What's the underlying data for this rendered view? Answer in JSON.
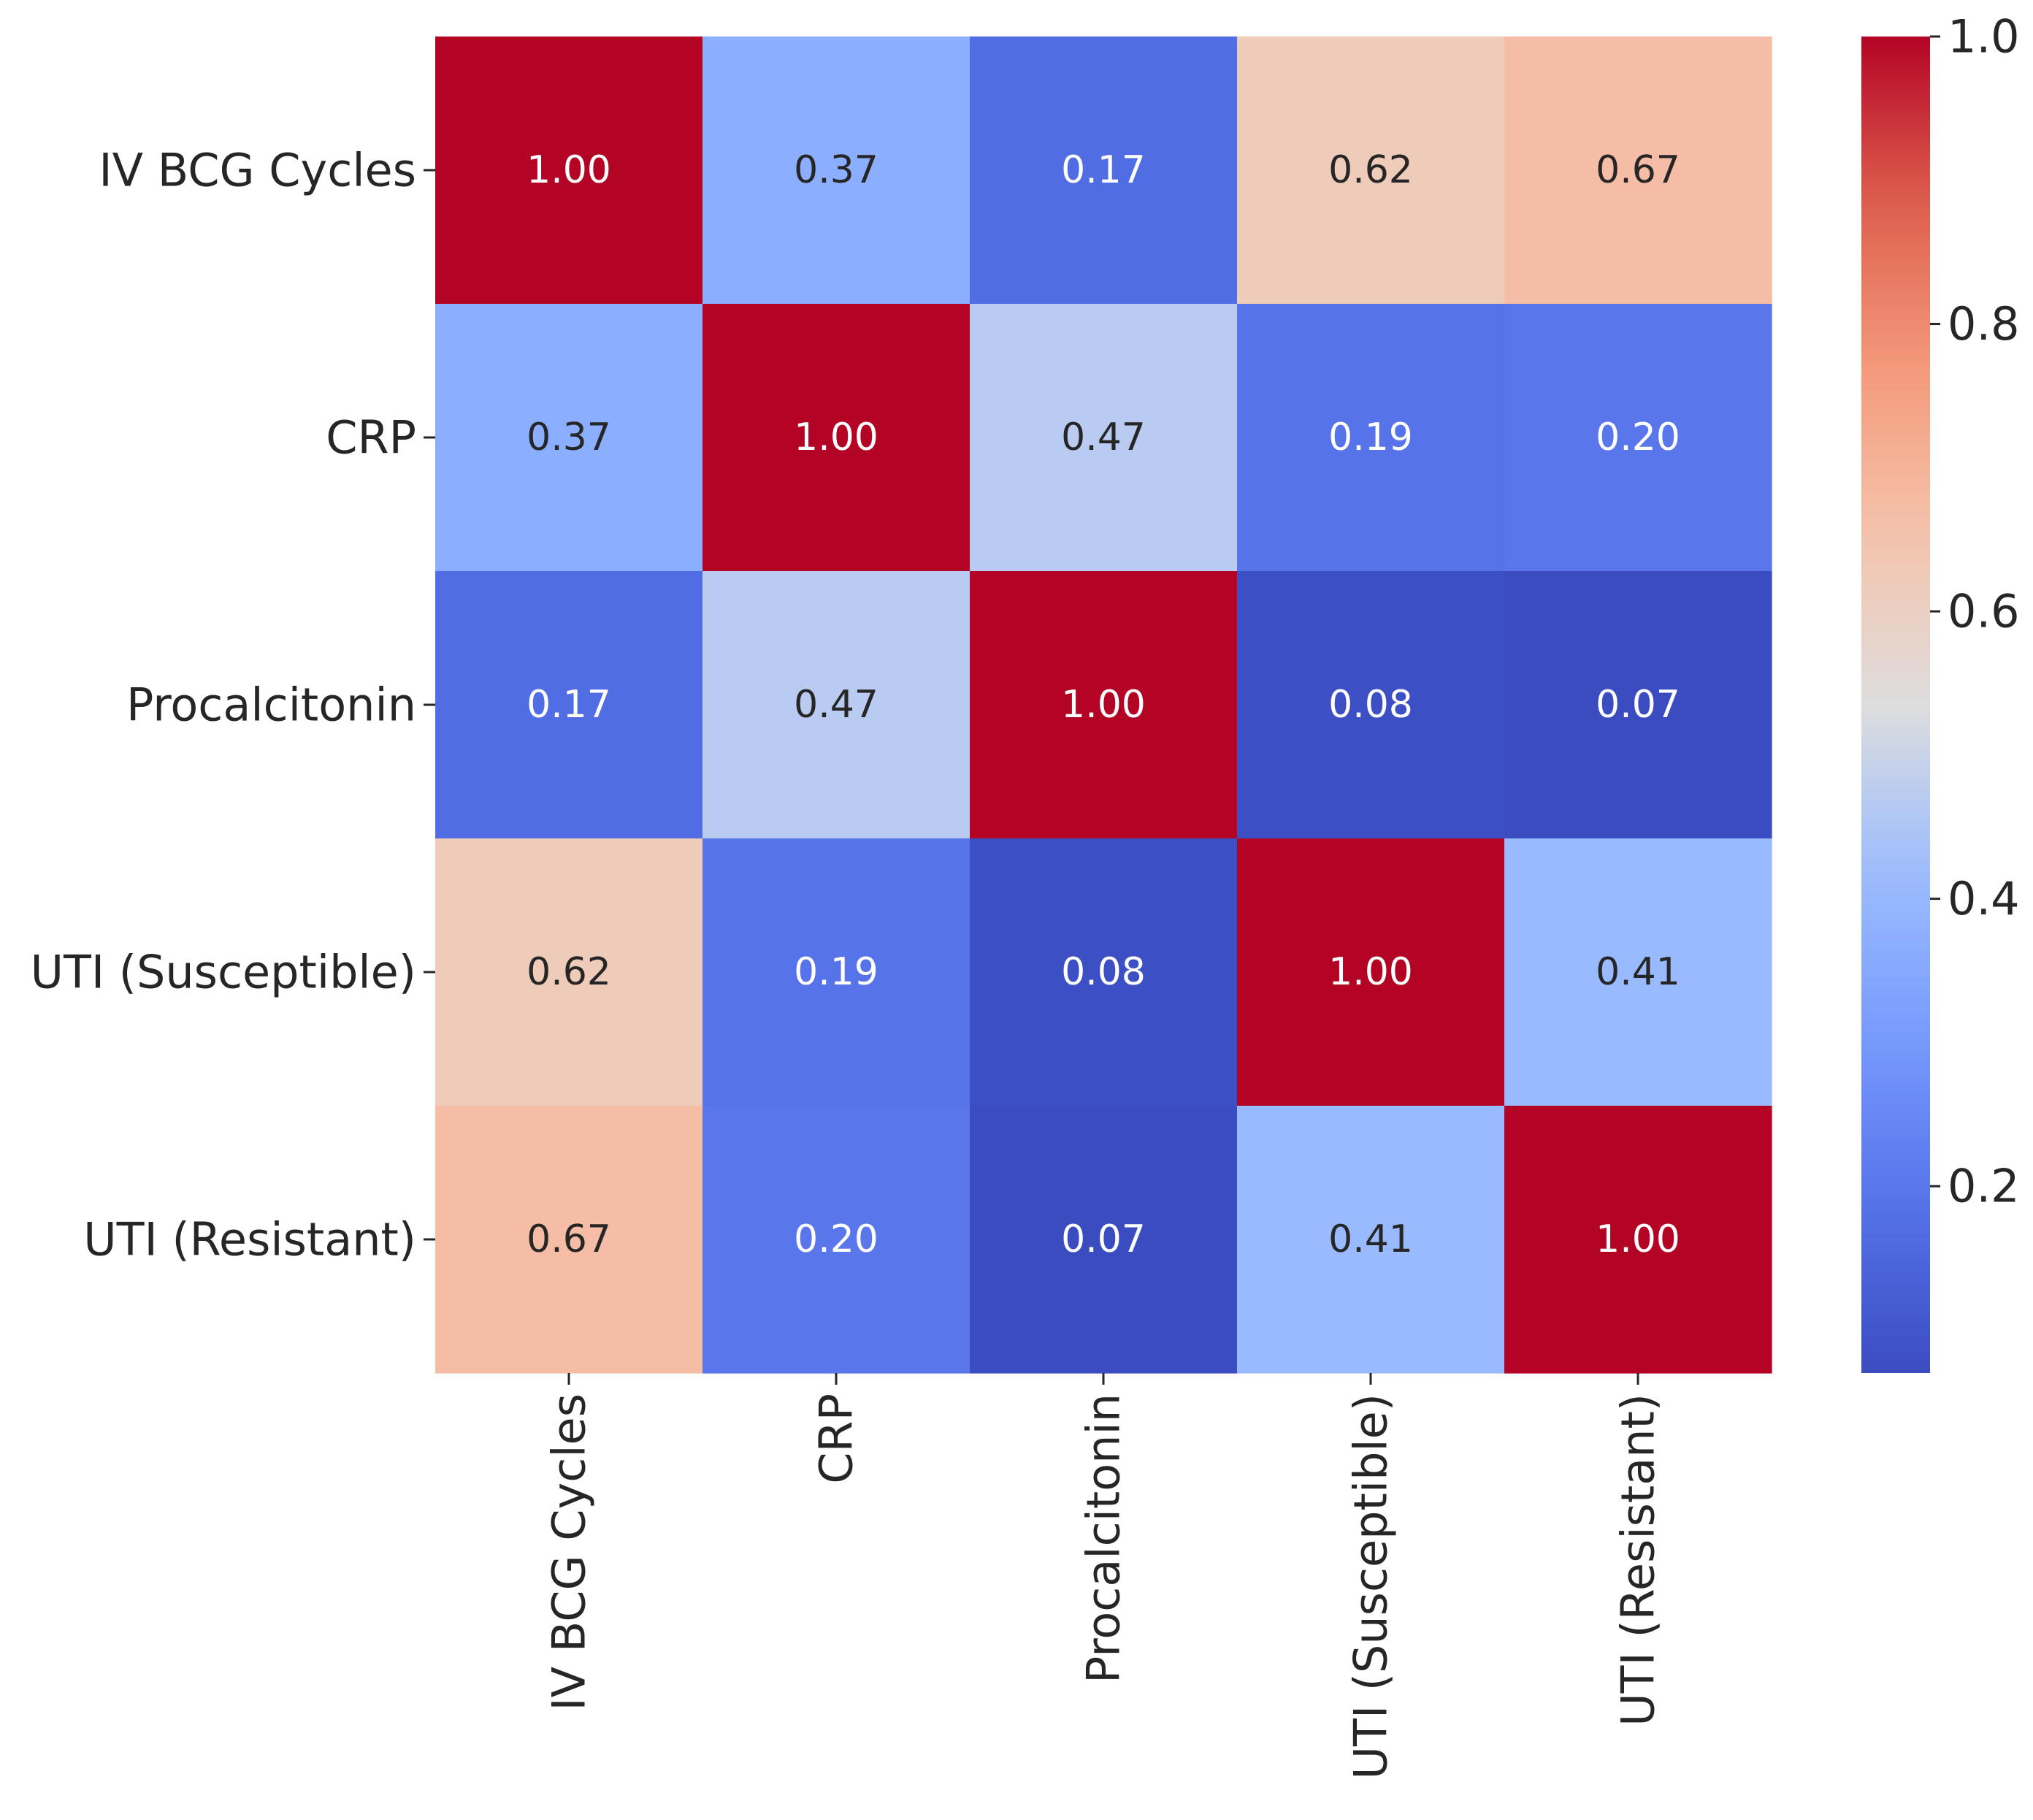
{
  "chart_data": {
    "type": "heatmap",
    "title": "",
    "xlabel": "",
    "ylabel": "",
    "categories": [
      "IV BCG Cycles",
      "CRP",
      "Procalcitonin",
      "UTI (Susceptible)",
      "UTI (Resistant)"
    ],
    "values": [
      [
        1.0,
        0.37,
        0.17,
        0.62,
        0.67
      ],
      [
        0.37,
        1.0,
        0.47,
        0.19,
        0.2
      ],
      [
        0.17,
        0.47,
        1.0,
        0.08,
        0.07
      ],
      [
        0.62,
        0.19,
        0.08,
        1.0,
        0.41
      ],
      [
        0.67,
        0.2,
        0.07,
        0.41,
        1.0
      ]
    ],
    "cell_labels": [
      [
        "1.00",
        "0.37",
        "0.17",
        "0.62",
        "0.67"
      ],
      [
        "0.37",
        "1.00",
        "0.47",
        "0.19",
        "0.20"
      ],
      [
        "0.17",
        "0.47",
        "1.00",
        "0.08",
        "0.07"
      ],
      [
        "0.62",
        "0.19",
        "0.08",
        "1.00",
        "0.41"
      ],
      [
        "0.67",
        "0.20",
        "0.07",
        "0.41",
        "1.00"
      ]
    ],
    "colormap": "coolwarm",
    "colorbar": {
      "range": [
        0.07,
        1.0
      ],
      "ticks": [
        0.2,
        0.4,
        0.6,
        0.8,
        1.0
      ],
      "tick_labels": [
        "0.2",
        "0.4",
        "0.6",
        "0.8",
        "1.0"
      ]
    }
  },
  "colors": {
    "cmap_low": "#3b4cc0",
    "cmap_mid": "#dddddd",
    "cmap_high": "#b40426",
    "text_dark": "#262626",
    "text_light": "#ffffff"
  }
}
